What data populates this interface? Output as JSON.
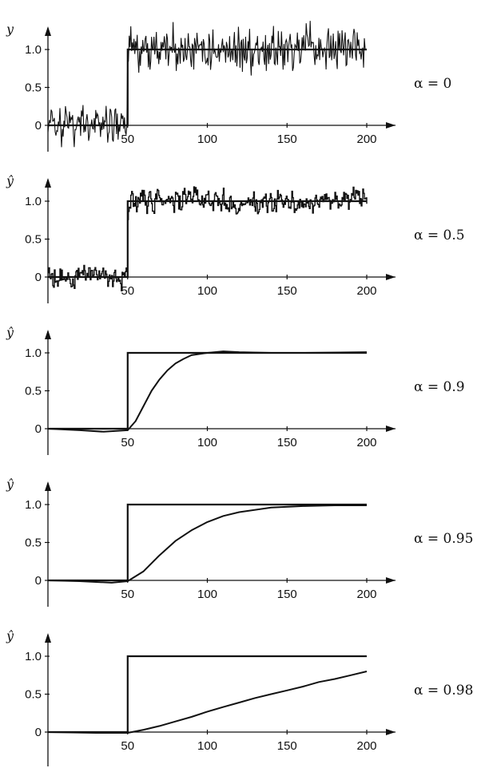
{
  "chart_data": [
    {
      "type": "line",
      "ylabel": "y",
      "annotation": "α = 0",
      "xticks": [
        "50",
        "100",
        "150",
        "200"
      ],
      "yticks": [
        "0",
        "0.5",
        "1.0"
      ],
      "xlim": [
        0,
        215
      ],
      "ylim": [
        -0.25,
        1.25
      ],
      "series": [
        {
          "x": [
            0,
            50,
            50,
            200
          ],
          "y": [
            0,
            0,
            1,
            1
          ]
        },
        {
          "noise_amplitude": 0.12,
          "smoothing": 0,
          "x_step_at": 50,
          "x_end": 200
        }
      ]
    },
    {
      "type": "line",
      "ylabel": "ŷ",
      "annotation": "α = 0.5",
      "xticks": [
        "50",
        "100",
        "150",
        "200"
      ],
      "yticks": [
        "0",
        "0.5",
        "1.0"
      ],
      "xlim": [
        0,
        215
      ],
      "ylim": [
        -0.25,
        1.25
      ],
      "series": [
        {
          "x": [
            0,
            50,
            50,
            200
          ],
          "y": [
            0,
            0,
            1,
            1
          ]
        },
        {
          "noise_amplitude": 0.12,
          "smoothing": 0.5,
          "x_step_at": 50,
          "x_end": 200
        }
      ]
    },
    {
      "type": "line",
      "ylabel": "ŷ",
      "annotation": "α = 0.9",
      "xticks": [
        "50",
        "100",
        "150",
        "200"
      ],
      "yticks": [
        "0",
        "0.5",
        "1.0"
      ],
      "xlim": [
        0,
        215
      ],
      "ylim": [
        -0.25,
        1.25
      ],
      "series": [
        {
          "x": [
            0,
            50,
            50,
            200
          ],
          "y": [
            0,
            0,
            1,
            1
          ]
        },
        {
          "x": [
            0,
            20,
            35,
            50,
            55,
            60,
            65,
            70,
            75,
            80,
            85,
            90,
            100,
            110,
            120,
            140,
            160,
            200
          ],
          "y": [
            0,
            -0.02,
            -0.04,
            -0.02,
            0.1,
            0.3,
            0.5,
            0.65,
            0.77,
            0.86,
            0.92,
            0.97,
            1.0,
            1.02,
            1.01,
            1.0,
            1.0,
            1.01
          ]
        }
      ]
    },
    {
      "type": "line",
      "ylabel": "ŷ",
      "annotation": "α = 0.95",
      "xticks": [
        "50",
        "100",
        "150",
        "200"
      ],
      "yticks": [
        "0",
        "0.5",
        "1.0"
      ],
      "xlim": [
        0,
        215
      ],
      "ylim": [
        -0.25,
        1.25
      ],
      "series": [
        {
          "x": [
            0,
            50,
            50,
            200
          ],
          "y": [
            0,
            0,
            1,
            1
          ]
        },
        {
          "x": [
            0,
            20,
            40,
            50,
            60,
            70,
            80,
            90,
            100,
            110,
            120,
            140,
            160,
            180,
            200
          ],
          "y": [
            0,
            -0.01,
            -0.03,
            -0.01,
            0.12,
            0.33,
            0.52,
            0.66,
            0.77,
            0.85,
            0.9,
            0.96,
            0.98,
            0.99,
            0.99
          ]
        }
      ]
    },
    {
      "type": "line",
      "ylabel": "ŷ",
      "annotation": "α = 0.98",
      "xticks": [
        "50",
        "100",
        "150",
        "200"
      ],
      "yticks": [
        "0",
        "0.5",
        "1.0"
      ],
      "xlim": [
        0,
        215
      ],
      "ylim": [
        -0.25,
        1.25
      ],
      "series": [
        {
          "x": [
            0,
            50,
            50,
            200
          ],
          "y": [
            0,
            0,
            1,
            1
          ]
        },
        {
          "x": [
            0,
            30,
            50,
            60,
            70,
            80,
            90,
            100,
            110,
            120,
            130,
            140,
            150,
            160,
            170,
            180,
            190,
            200
          ],
          "y": [
            0,
            -0.01,
            -0.01,
            0.03,
            0.08,
            0.14,
            0.2,
            0.27,
            0.33,
            0.39,
            0.45,
            0.5,
            0.55,
            0.6,
            0.66,
            0.7,
            0.75,
            0.8
          ]
        }
      ]
    }
  ]
}
